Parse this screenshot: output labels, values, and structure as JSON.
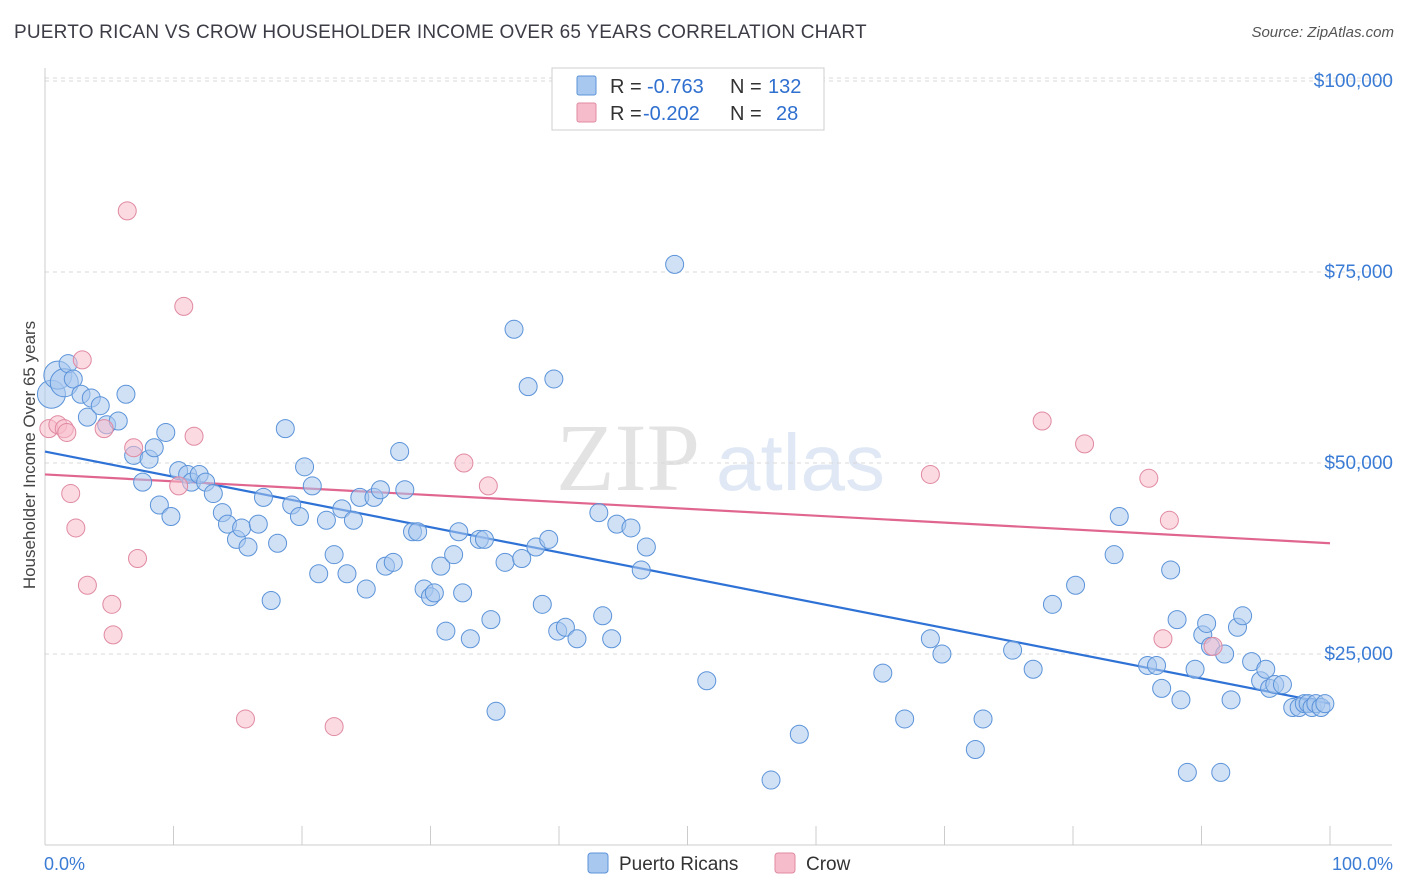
{
  "title": "PUERTO RICAN VS CROW HOUSEHOLDER INCOME OVER 65 YEARS CORRELATION CHART",
  "source": "Source: ZipAtlas.com",
  "watermark": {
    "zip": "ZIP",
    "atlas": "atlas"
  },
  "colors": {
    "blue_fill": "#a9c8ef",
    "blue_stroke": "#5b93d9",
    "blue_line": "#2f72d6",
    "pink_fill": "#f7bccb",
    "pink_stroke": "#e08aa2",
    "pink_line": "#e0668f",
    "tick_text": "#3a7bd5",
    "grid": "#d9d9d9"
  },
  "legend": {
    "rows": [
      {
        "r_label": "R =",
        "r_value": "-0.763",
        "n_label": "N =",
        "n_value": "132"
      },
      {
        "r_label": "R =",
        "r_value": "-0.202",
        "n_label": "N =",
        "n_value": "28"
      }
    ]
  },
  "bottom_legend": [
    "Puerto Ricans",
    "Crow"
  ],
  "chart_data": {
    "type": "scatter",
    "title": "PUERTO RICAN VS CROW HOUSEHOLDER INCOME OVER 65 YEARS CORRELATION CHART",
    "xlabel": "",
    "ylabel": "Householder Income Over 65 years",
    "xlim": [
      0,
      100
    ],
    "ylim": [
      0,
      105000
    ],
    "x_tick_labels": [
      "0.0%",
      "100.0%"
    ],
    "y_ticks": [
      25000,
      50000,
      75000,
      100000
    ],
    "y_tick_labels": [
      "$25,000",
      "$50,000",
      "$75,000",
      "$100,000"
    ],
    "grid": "horizontal-dashed",
    "legend_position": "top-center",
    "series": [
      {
        "name": "Puerto Ricans",
        "trend": {
          "x": [
            0,
            100
          ],
          "y": [
            51500,
            18500
          ]
        },
        "points": [
          [
            0.5,
            59000
          ],
          [
            1.0,
            61500
          ],
          [
            1.5,
            60500
          ],
          [
            1.8,
            63000
          ],
          [
            2.2,
            61000
          ],
          [
            2.8,
            59000
          ],
          [
            3.3,
            56000
          ],
          [
            3.6,
            58500
          ],
          [
            4.3,
            57500
          ],
          [
            4.8,
            55000
          ],
          [
            5.7,
            55500
          ],
          [
            6.3,
            59000
          ],
          [
            6.9,
            51000
          ],
          [
            7.6,
            47500
          ],
          [
            8.1,
            50500
          ],
          [
            8.5,
            52000
          ],
          [
            8.9,
            44500
          ],
          [
            9.4,
            54000
          ],
          [
            9.8,
            43000
          ],
          [
            10.4,
            49000
          ],
          [
            11.1,
            48500
          ],
          [
            11.4,
            47500
          ],
          [
            12.0,
            48500
          ],
          [
            12.5,
            47500
          ],
          [
            13.1,
            46000
          ],
          [
            13.8,
            43500
          ],
          [
            14.2,
            42000
          ],
          [
            14.9,
            40000
          ],
          [
            15.3,
            41500
          ],
          [
            15.8,
            39000
          ],
          [
            16.6,
            42000
          ],
          [
            17.0,
            45500
          ],
          [
            17.6,
            32000
          ],
          [
            18.1,
            39500
          ],
          [
            18.7,
            54500
          ],
          [
            19.2,
            44500
          ],
          [
            19.8,
            43000
          ],
          [
            20.2,
            49500
          ],
          [
            20.8,
            47000
          ],
          [
            21.3,
            35500
          ],
          [
            21.9,
            42500
          ],
          [
            22.5,
            38000
          ],
          [
            23.1,
            44000
          ],
          [
            23.5,
            35500
          ],
          [
            24.0,
            42500
          ],
          [
            24.5,
            45500
          ],
          [
            25.0,
            33500
          ],
          [
            25.6,
            45500
          ],
          [
            26.1,
            46500
          ],
          [
            26.5,
            36500
          ],
          [
            27.1,
            37000
          ],
          [
            27.6,
            51500
          ],
          [
            28.0,
            46500
          ],
          [
            28.6,
            41000
          ],
          [
            29.0,
            41000
          ],
          [
            29.5,
            33500
          ],
          [
            30.0,
            32500
          ],
          [
            30.3,
            33000
          ],
          [
            30.8,
            36500
          ],
          [
            31.2,
            28000
          ],
          [
            31.8,
            38000
          ],
          [
            32.2,
            41000
          ],
          [
            32.5,
            33000
          ],
          [
            33.1,
            27000
          ],
          [
            33.8,
            40000
          ],
          [
            34.2,
            40000
          ],
          [
            34.7,
            29500
          ],
          [
            35.1,
            17500
          ],
          [
            35.8,
            37000
          ],
          [
            36.5,
            67500
          ],
          [
            37.1,
            37500
          ],
          [
            37.6,
            60000
          ],
          [
            38.2,
            39000
          ],
          [
            38.7,
            31500
          ],
          [
            39.2,
            40000
          ],
          [
            39.6,
            61000
          ],
          [
            39.9,
            28000
          ],
          [
            40.5,
            28500
          ],
          [
            41.4,
            27000
          ],
          [
            43.1,
            43500
          ],
          [
            43.4,
            30000
          ],
          [
            44.1,
            27000
          ],
          [
            44.5,
            42000
          ],
          [
            45.6,
            41500
          ],
          [
            46.4,
            36000
          ],
          [
            46.8,
            39000
          ],
          [
            49.0,
            76000
          ],
          [
            51.5,
            21500
          ],
          [
            56.5,
            8500
          ],
          [
            58.7,
            14500
          ],
          [
            65.2,
            22500
          ],
          [
            66.9,
            16500
          ],
          [
            68.9,
            27000
          ],
          [
            69.8,
            25000
          ],
          [
            72.4,
            12500
          ],
          [
            73.0,
            16500
          ],
          [
            75.3,
            25500
          ],
          [
            76.9,
            23000
          ],
          [
            78.4,
            31500
          ],
          [
            80.2,
            34000
          ],
          [
            83.2,
            38000
          ],
          [
            83.6,
            43000
          ],
          [
            85.8,
            23500
          ],
          [
            86.5,
            23500
          ],
          [
            86.9,
            20500
          ],
          [
            87.6,
            36000
          ],
          [
            88.1,
            29500
          ],
          [
            88.4,
            19000
          ],
          [
            88.9,
            9500
          ],
          [
            89.5,
            23000
          ],
          [
            90.1,
            27500
          ],
          [
            90.4,
            29000
          ],
          [
            90.7,
            26000
          ],
          [
            91.5,
            9500
          ],
          [
            91.8,
            25000
          ],
          [
            92.3,
            19000
          ],
          [
            92.8,
            28500
          ],
          [
            93.2,
            30000
          ],
          [
            93.9,
            24000
          ],
          [
            94.6,
            21500
          ],
          [
            95.0,
            23000
          ],
          [
            95.3,
            20500
          ],
          [
            95.7,
            21000
          ],
          [
            96.3,
            21000
          ],
          [
            97.1,
            18000
          ],
          [
            97.6,
            18000
          ],
          [
            98.0,
            18500
          ],
          [
            98.3,
            18500
          ],
          [
            98.6,
            18000
          ],
          [
            98.9,
            18500
          ],
          [
            99.3,
            18000
          ],
          [
            99.6,
            18500
          ]
        ]
      },
      {
        "name": "Crow",
        "trend": {
          "x": [
            0,
            100
          ],
          "y": [
            48500,
            39500
          ]
        },
        "points": [
          [
            0.3,
            54500
          ],
          [
            1.0,
            55000
          ],
          [
            1.5,
            54500
          ],
          [
            1.7,
            54000
          ],
          [
            2.0,
            46000
          ],
          [
            2.4,
            41500
          ],
          [
            2.9,
            63500
          ],
          [
            3.3,
            34000
          ],
          [
            4.6,
            54500
          ],
          [
            5.2,
            31500
          ],
          [
            5.3,
            27500
          ],
          [
            6.4,
            83000
          ],
          [
            6.9,
            52000
          ],
          [
            7.2,
            37500
          ],
          [
            10.4,
            47000
          ],
          [
            10.8,
            70500
          ],
          [
            11.6,
            53500
          ],
          [
            15.6,
            16500
          ],
          [
            22.5,
            15500
          ],
          [
            32.6,
            50000
          ],
          [
            34.5,
            47000
          ],
          [
            68.9,
            48500
          ],
          [
            77.6,
            55500
          ],
          [
            80.9,
            52500
          ],
          [
            85.9,
            48000
          ],
          [
            87.0,
            27000
          ],
          [
            87.5,
            42500
          ],
          [
            90.9,
            26000
          ]
        ]
      }
    ]
  }
}
